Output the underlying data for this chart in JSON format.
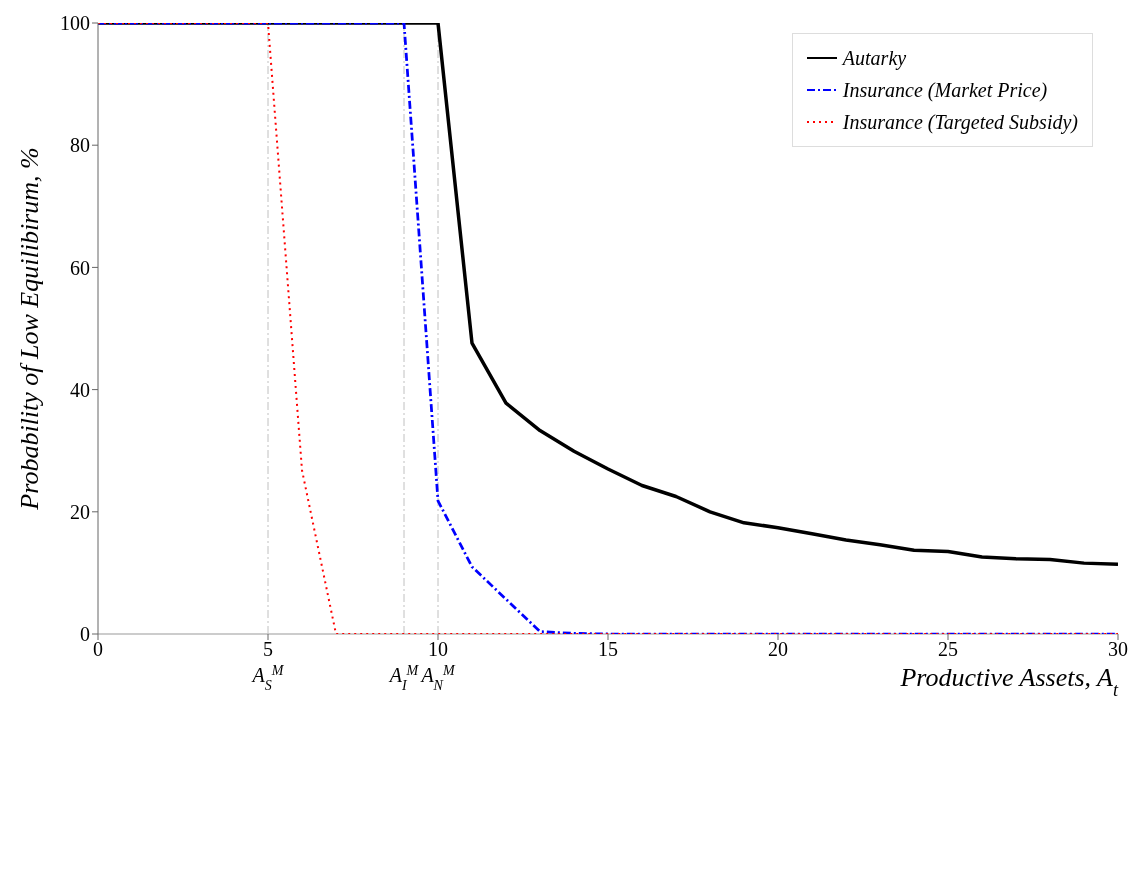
{
  "chart_data": {
    "type": "line",
    "xlabel": "Productive Assets, A$_{t}$",
    "ylabel": "Probability of Low Equilibirum, %",
    "x": [
      0,
      1,
      2,
      3,
      4,
      5,
      6,
      7,
      8,
      9,
      10,
      11,
      12,
      13,
      14,
      15,
      16,
      17,
      18,
      19,
      20,
      21,
      22,
      23,
      24,
      25,
      26,
      27,
      28,
      29,
      30
    ],
    "series": [
      {
        "name": "Autarky",
        "color": "#000000",
        "line_style": "solid",
        "values": [
          100,
          100,
          100,
          100,
          100,
          100,
          100,
          100,
          100,
          100,
          100,
          47.6,
          37.8,
          33.3,
          29.9,
          27,
          24.3,
          22.5,
          20,
          18.2,
          17.4,
          16.4,
          15.4,
          14.6,
          13.7,
          13.5,
          12.6,
          12.3,
          12.2,
          11.6,
          11.4
        ]
      },
      {
        "name": "Insurance (Market Price)",
        "color": "#0000ff",
        "line_style": "dashed",
        "values": [
          100,
          100,
          100,
          100,
          100,
          100,
          100,
          100,
          100,
          100,
          21.8,
          11,
          5.7,
          0.4,
          0.1,
          0,
          0,
          0,
          0,
          0,
          0,
          0,
          0,
          0,
          0,
          0,
          0,
          0,
          0,
          0,
          0
        ]
      },
      {
        "name": "Insurance (Targeted Subsidy)",
        "color": "#ff0000",
        "line_style": "dotted",
        "values": [
          100,
          100,
          100,
          100,
          100,
          100,
          26.8,
          0,
          0,
          0,
          0,
          0,
          0,
          0,
          0,
          0,
          0,
          0,
          0,
          0,
          0,
          0,
          0,
          0,
          0,
          0,
          0,
          0,
          0,
          0,
          0
        ]
      }
    ],
    "xlim": [
      0,
      30
    ],
    "xticks": [
      0,
      5,
      10,
      15,
      20,
      25,
      30
    ],
    "ylim": [
      0,
      100
    ],
    "yticks": [
      0,
      20,
      40,
      60,
      80,
      100
    ],
    "ref_lines": [
      {
        "axis": "x",
        "value": 5,
        "label": "A$_{S}$$^{M}$",
        "color": "#c0c0c0",
        "line_style": "dashed"
      },
      {
        "axis": "x",
        "value": 9,
        "label": "A$_{I}$$^{M}$",
        "color": "#c0c0c0",
        "line_style": "dashed"
      },
      {
        "axis": "x",
        "value": 10,
        "label": "A$_{N}$$^{M}$",
        "color": "#c0c0c0",
        "line_style": "dashed"
      }
    ],
    "grid": false,
    "legend": "top right",
    "marker": "none"
  }
}
